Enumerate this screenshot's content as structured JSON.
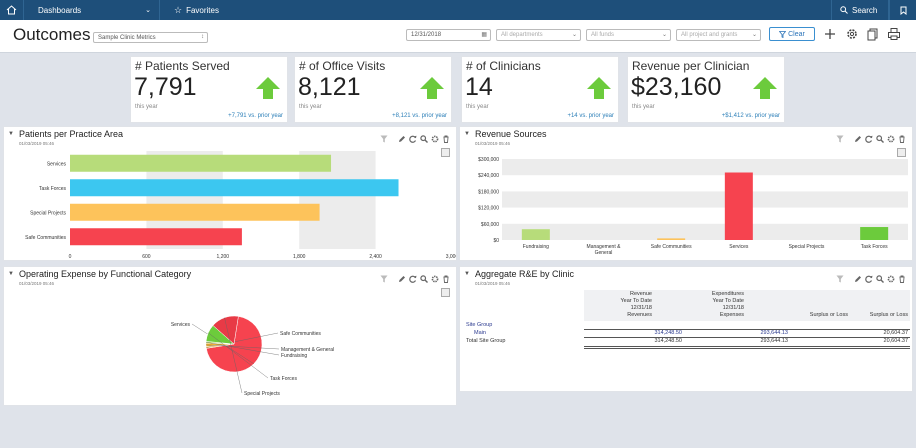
{
  "nav": {
    "home_icon": "home-icon",
    "dashboards_label": "Dashboards",
    "favorites_label": "Favorites",
    "search_label": "Search",
    "bookmark_icon": "bookmark-icon"
  },
  "header": {
    "title": "Outcomes",
    "metrics_select": "Sample Clinic Metrics",
    "date_value": "12/31/2018",
    "departments_placeholder": "All departments",
    "funds_placeholder": "All funds",
    "grants_placeholder": "All project and grants",
    "clear_label": "Clear",
    "accent": "#2a73b8"
  },
  "kpis": [
    {
      "title": "# Patients Served",
      "value": "7,791",
      "sub": "this year",
      "change": "+7,791 vs. prior year"
    },
    {
      "title": "# of Office Visits",
      "value": "8,121",
      "sub": "this year",
      "change": "+8,121 vs. prior year"
    },
    {
      "title": "# of Clinicians",
      "value": "14",
      "sub": "this year",
      "change": "+14 vs. prior year"
    },
    {
      "title": "Revenue per Clinician",
      "value": "$23,160",
      "sub": "this year",
      "change": "+$1,412 vs. prior year"
    }
  ],
  "panels": {
    "p1": {
      "title": "Patients per Practice Area",
      "date": "01/03/2019 05:46"
    },
    "p2": {
      "title": "Revenue Sources",
      "date": "01/03/2019 05:46"
    },
    "p3": {
      "title": "Operating Expense by Functional Category",
      "date": "01/03/2019 05:46"
    },
    "p4": {
      "title": "Aggregate R&E by Clinic",
      "date": "01/03/2019 05:46"
    }
  },
  "chart_data": [
    {
      "type": "bar",
      "orientation": "horizontal",
      "title": "Patients per Practice Area",
      "categories": [
        "Services",
        "Task Forces",
        "Special Projects",
        "Safe Communities"
      ],
      "values": [
        2050,
        2580,
        1960,
        1350
      ],
      "colors": [
        "#b7dc7a",
        "#3cc7f0",
        "#fdc35b",
        "#f6434f"
      ],
      "xlim": [
        0,
        3000
      ],
      "ticks": [
        "0",
        "600",
        "1,200",
        "1,800",
        "2,400",
        "3,000"
      ],
      "tick_values": [
        0,
        600,
        1200,
        1800,
        2400,
        3000
      ]
    },
    {
      "type": "bar",
      "title": "Revenue Sources",
      "categories": [
        "Fundraising",
        "Management & General",
        "Safe Communities",
        "Services",
        "Special Projects",
        "Task Forces"
      ],
      "values": [
        40000,
        0,
        6000,
        250000,
        0,
        48000
      ],
      "colors": [
        "#b7dc7a",
        "#b7dc7a",
        "#fdc35b",
        "#f6434f",
        "#3cc7f0",
        "#6ccb3c"
      ],
      "ylim": [
        0,
        300000
      ],
      "ticks": [
        "$0",
        "$60,000",
        "$120,000",
        "$180,000",
        "$240,000",
        "$300,000"
      ],
      "tick_values": [
        0,
        60000,
        120000,
        180000,
        240000,
        300000
      ]
    },
    {
      "type": "pie",
      "title": "Operating Expense by Functional Category",
      "labels": [
        "Services",
        "Safe Communities",
        "Management & General",
        "Fundraising",
        "Task Forces",
        "Special Projects"
      ],
      "values": [
        70,
        1,
        2,
        1,
        10,
        16
      ],
      "colors": [
        "#f6434f",
        "#fdc35b",
        "#f0b030",
        "#b7dc7a",
        "#6ccb3c",
        "#e83a46"
      ]
    }
  ],
  "table": {
    "col_headers": [
      [
        "Revenue",
        "Year To Date",
        "12/31/18",
        "Revenues"
      ],
      [
        "Expenditures",
        "Year To Date",
        "12/31/18",
        "Expenses"
      ],
      [
        "",
        "",
        "",
        "Surplus or Loss"
      ],
      [
        "",
        "",
        "",
        "Surplus or Loss"
      ]
    ],
    "group_label": "Site Group",
    "rows": [
      {
        "label": "Main",
        "rev": "314,248.50",
        "exp": "293,644.13",
        "sur": "",
        "sur2": "20,604.37"
      },
      {
        "label": "Total Site Group",
        "rev": "314,248.50",
        "exp": "293,644.13",
        "sur": "",
        "sur2": "20,604.37"
      }
    ]
  }
}
